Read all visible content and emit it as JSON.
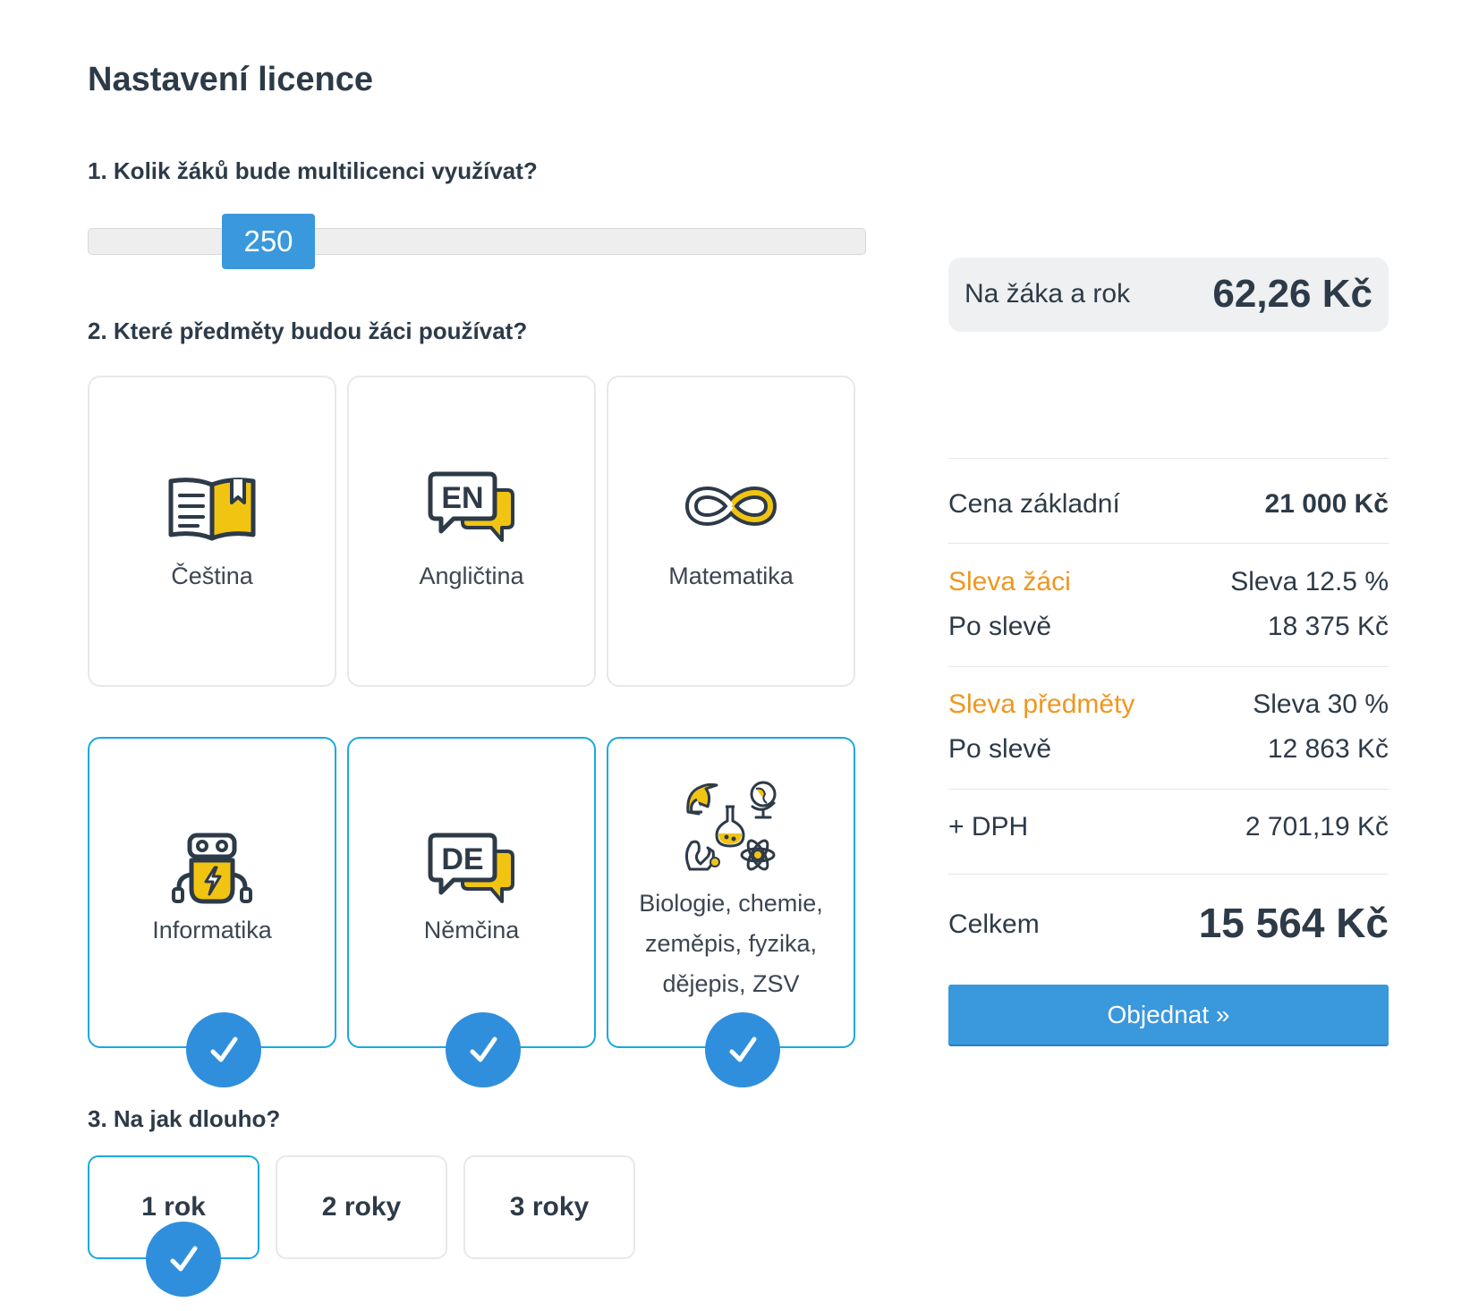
{
  "title": "Nastavení licence",
  "question1": "1. Kolik žáků bude multilicenci využívat?",
  "students_slider": {
    "value": "250"
  },
  "question2": "2. Které předměty budou žáci používat?",
  "subjects": [
    {
      "label": "Čeština",
      "icon": "book-icon",
      "selected": false
    },
    {
      "label": "Angličtina",
      "icon": "english-speech-icon",
      "selected": false
    },
    {
      "label": "Matematika",
      "icon": "infinity-icon",
      "selected": false
    },
    {
      "label": "Informatika",
      "icon": "robot-icon",
      "selected": true
    },
    {
      "label": "Němčina",
      "icon": "german-speech-icon",
      "selected": true
    },
    {
      "label": "Biologie, chemie,\nzeměpis, fyzika,\ndějepis, ZSV",
      "icon": "science-icons",
      "selected": true
    }
  ],
  "question3": "3. Na jak dlouho?",
  "durations": [
    {
      "label": "1 rok",
      "selected": true
    },
    {
      "label": "2 roky",
      "selected": false
    },
    {
      "label": "3 roky",
      "selected": false
    }
  ],
  "per_student": {
    "label": "Na žáka a rok",
    "value": "62,26 Kč"
  },
  "summary": {
    "base_label": "Cena základní",
    "base_value": "21 000 Kč",
    "student_discount_label": "Sleva žáci",
    "student_discount_value": "Sleva 12.5 %",
    "after_discount_label": "Po slevě",
    "after_student_discount_value": "18 375 Kč",
    "subject_discount_label": "Sleva předměty",
    "subject_discount_value": "Sleva 30 %",
    "after_subject_discount_value": "12 863 Kč",
    "vat_label": "+ DPH",
    "vat_value": "2 701,19 Kč",
    "total_label": "Celkem",
    "total_value": "15 564 Kč"
  },
  "order_button": "Objednat  »",
  "colors": {
    "accent": "#3a98dc",
    "selected_border": "#19a9df",
    "discount": "#f0961f",
    "icon_yellow": "#f2c412",
    "icon_dark": "#2d3a48"
  }
}
